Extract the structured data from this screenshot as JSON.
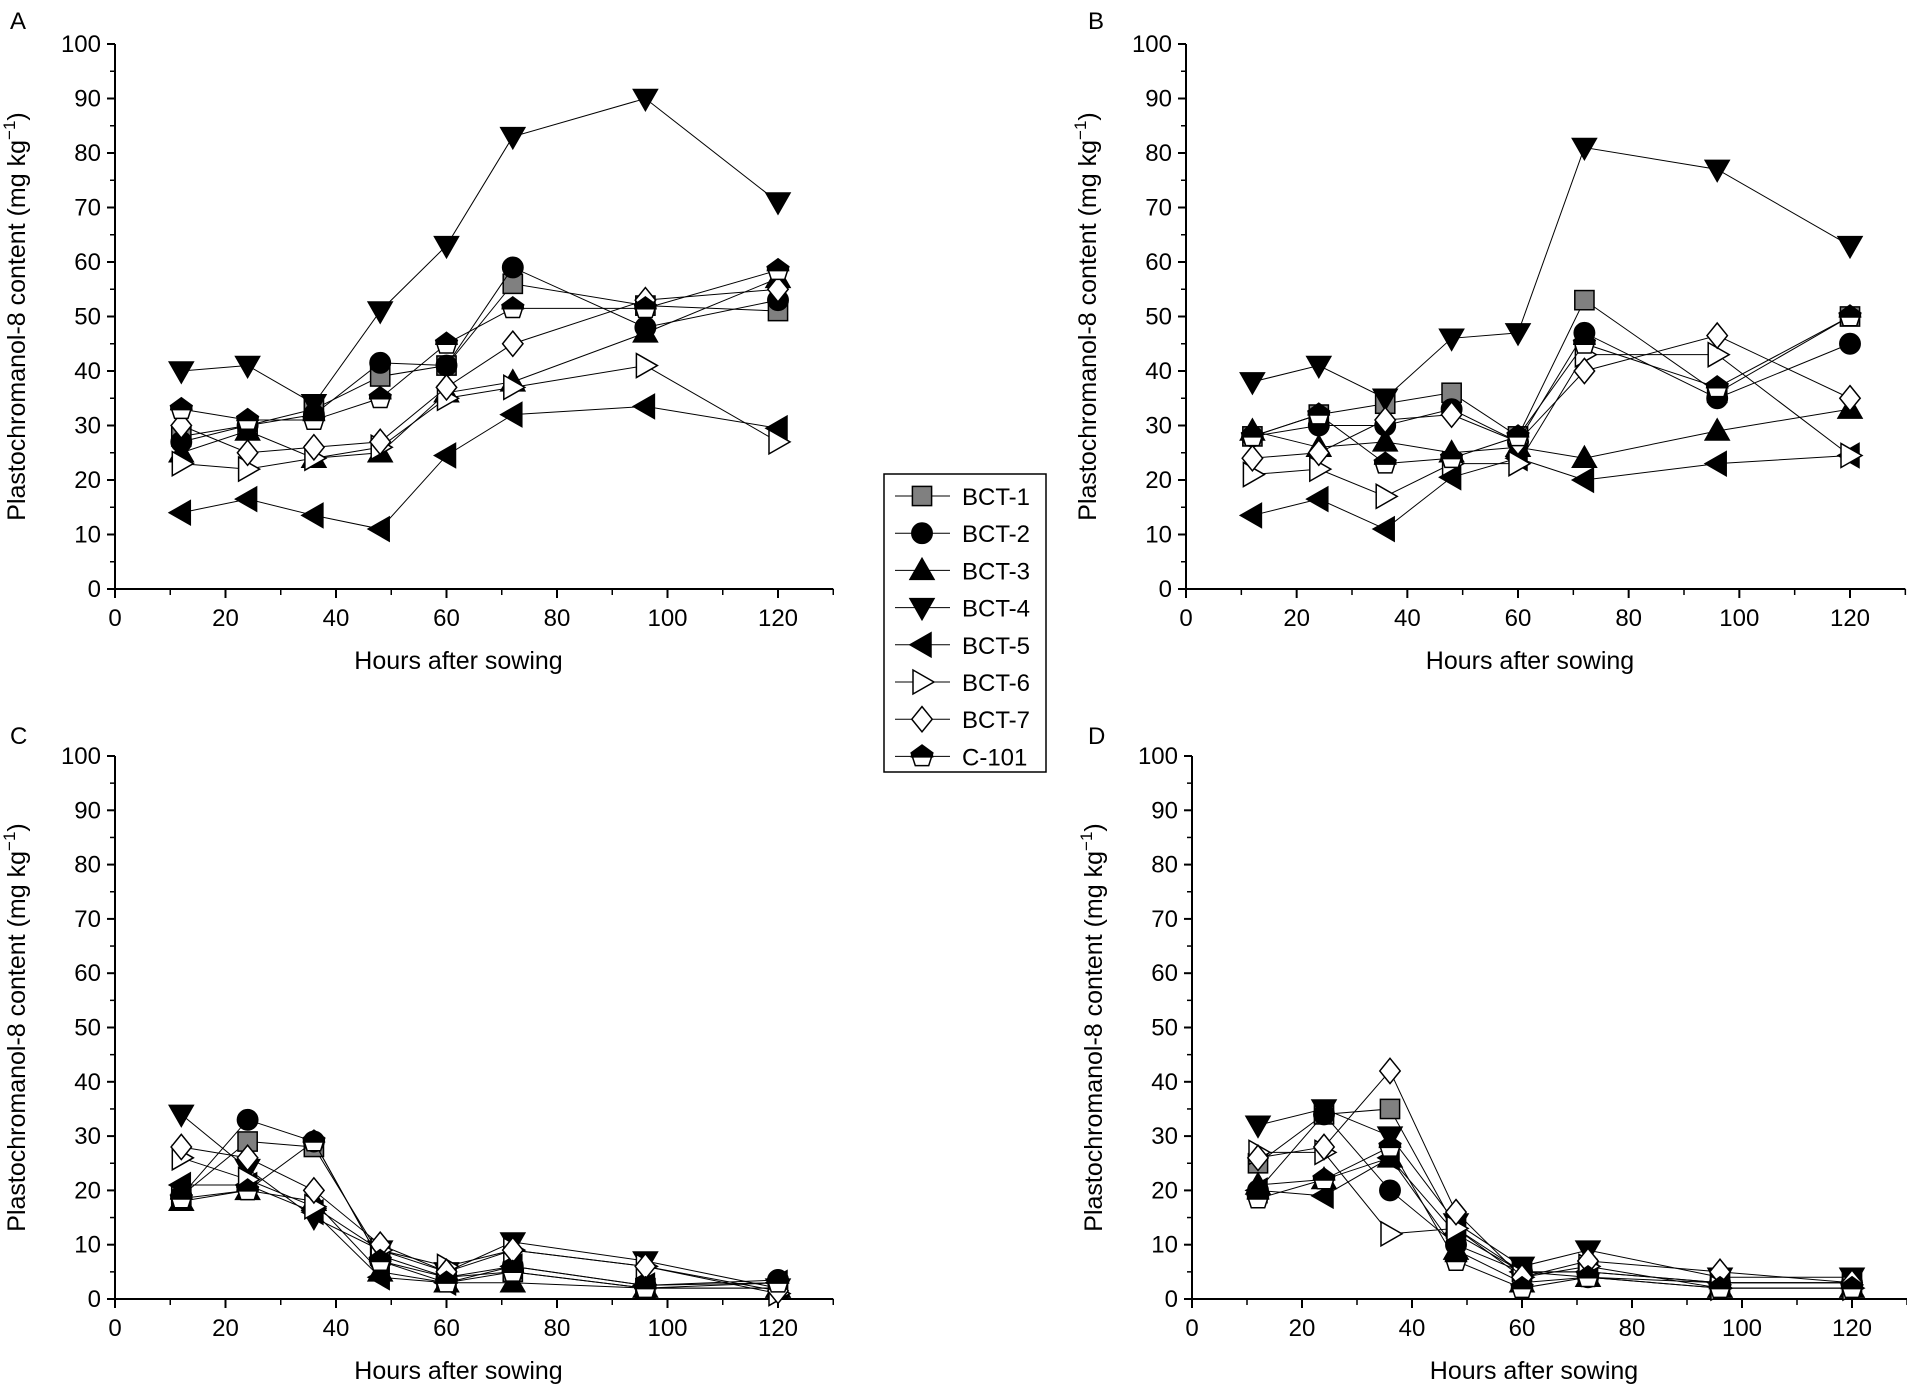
{
  "legend": [
    {
      "name": "BCT-1",
      "marker": "square",
      "fill": "#808080"
    },
    {
      "name": "BCT-2",
      "marker": "circle",
      "fill": "#000000"
    },
    {
      "name": "BCT-3",
      "marker": "triangle-up",
      "fill": "#000000"
    },
    {
      "name": "BCT-4",
      "marker": "triangle-down",
      "fill": "#000000"
    },
    {
      "name": "BCT-5",
      "marker": "triangle-left",
      "fill": "#000000"
    },
    {
      "name": "BCT-6",
      "marker": "triangle-right",
      "fill": "#ffffff"
    },
    {
      "name": "BCT-7",
      "marker": "diamond",
      "fill": "#ffffff"
    },
    {
      "name": "C-101",
      "marker": "pentagon",
      "fill": "half"
    }
  ],
  "chart_data": [
    {
      "type": "line",
      "panel": "A",
      "xlabel": "Hours after sowing",
      "ylabel": "Plastochromanol-8 content (mg kg",
      "ylabel_sup": "−1",
      "ylabel_end": ")",
      "xlim": [
        0,
        130
      ],
      "ylim": [
        0,
        100
      ],
      "xticks": [
        0,
        20,
        40,
        60,
        80,
        100,
        120
      ],
      "yticks": [
        0,
        10,
        20,
        30,
        40,
        50,
        60,
        70,
        80,
        90,
        100
      ],
      "x": [
        12,
        24,
        36,
        48,
        60,
        72,
        96,
        120
      ],
      "series": [
        {
          "name": "BCT-1",
          "values": [
            28,
            30,
            33,
            39,
            41,
            56,
            52,
            51
          ]
        },
        {
          "name": "BCT-2",
          "values": [
            27,
            30,
            32,
            41.5,
            41,
            59,
            48,
            53
          ]
        },
        {
          "name": "BCT-3",
          "values": [
            25,
            29,
            24,
            25,
            36,
            38,
            47,
            57
          ]
        },
        {
          "name": "BCT-4",
          "values": [
            40,
            41,
            34,
            51,
            63,
            83,
            90,
            71
          ]
        },
        {
          "name": "BCT-5",
          "values": [
            14,
            16.5,
            13.5,
            11,
            24.5,
            32,
            33.5,
            29.5
          ]
        },
        {
          "name": "BCT-6",
          "values": [
            23,
            22,
            24,
            26,
            35,
            37,
            41,
            27
          ]
        },
        {
          "name": "BCT-7",
          "values": [
            30,
            25,
            26,
            27,
            37,
            45,
            53,
            55
          ]
        },
        {
          "name": "C-101",
          "values": [
            33,
            31,
            31,
            35,
            45,
            51.5,
            51.5,
            58.5
          ]
        }
      ]
    },
    {
      "type": "line",
      "panel": "B",
      "xlabel": "Hours after sowing",
      "ylabel": "Plastochromanol-8 content (mg kg",
      "ylabel_sup": "−1",
      "ylabel_end": ")",
      "xlim": [
        0,
        130
      ],
      "ylim": [
        0,
        100
      ],
      "xticks": [
        0,
        20,
        40,
        60,
        80,
        100,
        120
      ],
      "yticks": [
        0,
        10,
        20,
        30,
        40,
        50,
        60,
        70,
        80,
        90,
        100
      ],
      "x": [
        12,
        24,
        36,
        48,
        60,
        72,
        96,
        120
      ],
      "series": [
        {
          "name": "BCT-1",
          "values": [
            28,
            32,
            34,
            36,
            28,
            53,
            36,
            50
          ]
        },
        {
          "name": "BCT-2",
          "values": [
            28,
            30,
            30,
            33,
            27,
            47,
            35,
            45
          ]
        },
        {
          "name": "BCT-3",
          "values": [
            29,
            26,
            27,
            25,
            26,
            24,
            29,
            33
          ]
        },
        {
          "name": "BCT-4",
          "values": [
            38,
            41,
            35,
            46,
            47,
            81,
            77,
            63
          ]
        },
        {
          "name": "BCT-5",
          "values": [
            13.5,
            16.5,
            11,
            20.5,
            24,
            20,
            23,
            24.5
          ]
        },
        {
          "name": "BCT-6",
          "values": [
            21,
            22,
            17,
            23,
            23,
            43,
            43,
            24.5
          ]
        },
        {
          "name": "BCT-7",
          "values": [
            24,
            25,
            31,
            32,
            27,
            40,
            46.5,
            35
          ]
        },
        {
          "name": "C-101",
          "values": [
            28,
            32,
            23,
            24,
            28,
            45,
            37,
            50
          ]
        }
      ]
    },
    {
      "type": "line",
      "panel": "C",
      "xlabel": "Hours after sowing",
      "ylabel": "Plastochromanol-8 content (mg kg",
      "ylabel_sup": "−1",
      "ylabel_end": ")",
      "xlim": [
        0,
        130
      ],
      "ylim": [
        0,
        100
      ],
      "xticks": [
        0,
        20,
        40,
        60,
        80,
        100,
        120
      ],
      "yticks": [
        0,
        10,
        20,
        30,
        40,
        50,
        60,
        70,
        80,
        90,
        100
      ],
      "x": [
        12,
        24,
        36,
        48,
        60,
        72,
        96,
        120
      ],
      "series": [
        {
          "name": "BCT-1",
          "values": [
            19,
            29,
            28,
            8,
            4,
            5,
            2,
            2
          ]
        },
        {
          "name": "BCT-2",
          "values": [
            19,
            33,
            29,
            7,
            4,
            6,
            2.5,
            3.5
          ]
        },
        {
          "name": "BCT-3",
          "values": [
            18,
            20,
            18,
            5,
            3,
            3,
            2,
            2
          ]
        },
        {
          "name": "BCT-4",
          "values": [
            34,
            24,
            15,
            9,
            5,
            10.5,
            7,
            2
          ]
        },
        {
          "name": "BCT-5",
          "values": [
            21,
            21,
            16,
            4,
            3,
            6,
            2.5,
            3
          ]
        },
        {
          "name": "BCT-6",
          "values": [
            26,
            22,
            17,
            9,
            6,
            9,
            6,
            1
          ]
        },
        {
          "name": "BCT-7",
          "values": [
            28,
            26,
            20,
            10,
            5,
            9,
            6,
            1.5
          ]
        },
        {
          "name": "C-101",
          "values": [
            18.5,
            20,
            29,
            7,
            3,
            5,
            2,
            3
          ]
        }
      ]
    },
    {
      "type": "line",
      "panel": "D",
      "xlabel": "Hours after sowing",
      "ylabel": "Plastochromanol-8 content (mg kg",
      "ylabel_sup": "−1",
      "ylabel_end": ")",
      "xlim": [
        0,
        130
      ],
      "ylim": [
        0,
        100
      ],
      "xticks": [
        0,
        20,
        40,
        60,
        80,
        100,
        120
      ],
      "yticks": [
        0,
        10,
        20,
        30,
        40,
        50,
        60,
        70,
        80,
        90,
        100
      ],
      "x": [
        12,
        24,
        36,
        48,
        60,
        72,
        96,
        120
      ],
      "series": [
        {
          "name": "BCT-1",
          "values": [
            25,
            34,
            35,
            13,
            5,
            5,
            3,
            3
          ]
        },
        {
          "name": "BCT-2",
          "values": [
            20,
            34,
            20,
            10,
            5,
            4,
            3,
            3
          ]
        },
        {
          "name": "BCT-3",
          "values": [
            21,
            22,
            26,
            9,
            3,
            4,
            2,
            2
          ]
        },
        {
          "name": "BCT-4",
          "values": [
            32,
            35,
            30,
            14,
            6,
            9,
            4,
            4
          ]
        },
        {
          "name": "BCT-5",
          "values": [
            20,
            19,
            26,
            12,
            5,
            5,
            3,
            3
          ]
        },
        {
          "name": "BCT-6",
          "values": [
            27,
            27,
            12,
            13,
            4,
            6,
            2,
            2
          ]
        },
        {
          "name": "BCT-7",
          "values": [
            26,
            28,
            42,
            16,
            4,
            7,
            5,
            3
          ]
        },
        {
          "name": "C-101",
          "values": [
            18.5,
            22,
            28,
            7,
            2,
            4,
            2,
            2
          ]
        }
      ]
    }
  ]
}
